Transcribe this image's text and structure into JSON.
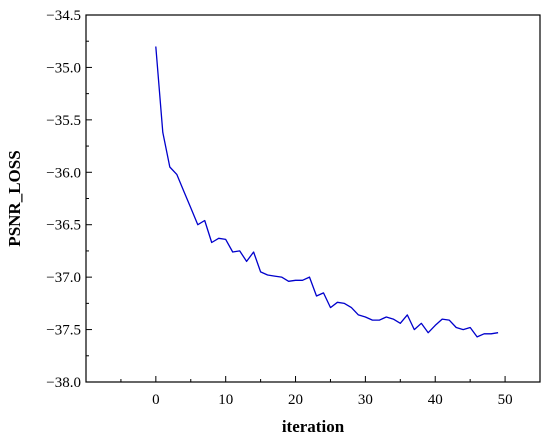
{
  "chart_data": {
    "type": "line",
    "title": "",
    "xlabel": "iteration",
    "ylabel": "PSNR_LOSS",
    "xlim": [
      -10,
      55
    ],
    "ylim": [
      -38.0,
      -34.5
    ],
    "xticks": [
      0,
      10,
      20,
      30,
      40,
      50
    ],
    "yticks": [
      -38.0,
      -37.5,
      -37.0,
      -36.5,
      -36.0,
      -35.5,
      -35.0,
      -34.5
    ],
    "grid": false,
    "legend": "none",
    "line_color": "#0000cc",
    "series": [
      {
        "name": "",
        "x": [
          0,
          1,
          2,
          3,
          4,
          5,
          6,
          7,
          8,
          9,
          10,
          11,
          12,
          13,
          14,
          15,
          16,
          17,
          18,
          19,
          20,
          21,
          22,
          23,
          24,
          25,
          26,
          27,
          28,
          29,
          30,
          31,
          32,
          33,
          34,
          35,
          36,
          37,
          38,
          39,
          40,
          41,
          42,
          43,
          44,
          45,
          46,
          47,
          48,
          49
        ],
        "values": [
          -34.8,
          -35.62,
          -35.95,
          -36.02,
          -36.18,
          -36.34,
          -36.5,
          -36.46,
          -36.67,
          -36.63,
          -36.64,
          -36.76,
          -36.75,
          -36.85,
          -36.76,
          -36.95,
          -36.98,
          -36.99,
          -37.0,
          -37.04,
          -37.03,
          -37.03,
          -37.0,
          -37.18,
          -37.15,
          -37.29,
          -37.24,
          -37.25,
          -37.29,
          -37.36,
          -37.38,
          -37.41,
          -37.41,
          -37.38,
          -37.4,
          -37.44,
          -37.36,
          -37.5,
          -37.44,
          -37.53,
          -37.46,
          -37.4,
          -37.41,
          -37.48,
          -37.5,
          -37.48,
          -37.57,
          -37.54,
          -37.54,
          -37.53
        ]
      }
    ]
  }
}
